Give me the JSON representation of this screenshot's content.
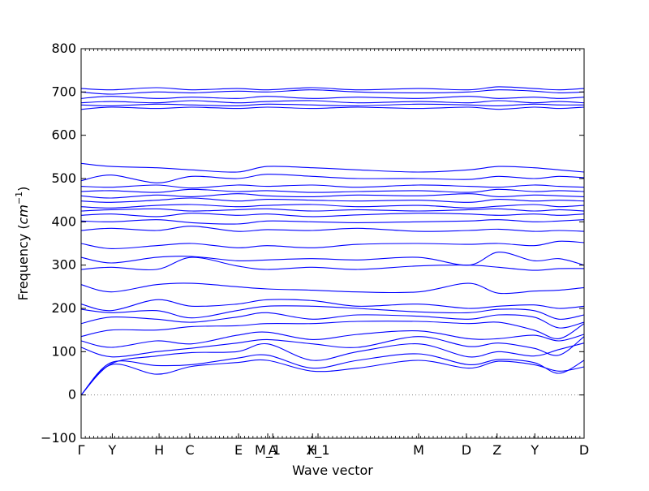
{
  "chart_data": {
    "type": "line",
    "title": "",
    "xlabel": "Wave vector",
    "ylabel": "Frequency ($cm^{-1}$)",
    "ylabel_parts": {
      "main": "Frequency (",
      "math": "cm",
      "sup": "−1",
      "close": ")"
    },
    "ylim": [
      -100,
      800
    ],
    "yticks": [
      -100,
      0,
      100,
      200,
      300,
      400,
      500,
      600,
      700,
      800
    ],
    "x_range": [
      0,
      1
    ],
    "grid": false,
    "legend": "none",
    "zero_line": {
      "y": 0,
      "style": "dotted",
      "color": "#808080"
    },
    "colors": {
      "bands": "#0000ff",
      "axes": "#000000"
    },
    "high_symmetry_points": [
      {
        "label": "Γ",
        "x": 0.0
      },
      {
        "label": "Y",
        "x": 0.062
      },
      {
        "label": "H",
        "x": 0.155
      },
      {
        "label": "C",
        "x": 0.216
      },
      {
        "label": "E",
        "x": 0.313
      },
      {
        "label": "M_1",
        "x": 0.371
      },
      {
        "label": "A",
        "x": 0.381
      },
      {
        "label": "H",
        "x": 0.46
      },
      {
        "label": "X_1",
        "x": 0.471
      },
      {
        "label": "M",
        "x": 0.671
      },
      {
        "label": "D",
        "x": 0.766
      },
      {
        "label": "Z",
        "x": 0.827
      },
      {
        "label": "Y",
        "x": 0.902
      },
      {
        "label": "D",
        "x": 1.0
      }
    ],
    "series": [
      {
        "name": "",
        "x": [
          0,
          0.06,
          0.15,
          0.22,
          0.31,
          0.37,
          0.46,
          0.55,
          0.67,
          0.77,
          0.83,
          0.9,
          0.95,
          1
        ],
        "values": [
          0,
          70,
          48,
          66,
          75,
          80,
          55,
          62,
          80,
          62,
          78,
          70,
          55,
          65
        ]
      },
      {
        "name": "",
        "x": [
          0,
          0.06,
          0.15,
          0.22,
          0.31,
          0.37,
          0.46,
          0.55,
          0.67,
          0.77,
          0.83,
          0.9,
          0.95,
          1
        ],
        "values": [
          0,
          75,
          68,
          70,
          85,
          92,
          62,
          80,
          95,
          70,
          82,
          75,
          50,
          80
        ]
      },
      {
        "name": "",
        "x": [
          0,
          0.06,
          0.15,
          0.22,
          0.31,
          0.37,
          0.46,
          0.55,
          0.67,
          0.77,
          0.83,
          0.9,
          0.95,
          1
        ],
        "values": [
          0,
          72,
          90,
          98,
          100,
          118,
          80,
          100,
          118,
          88,
          100,
          90,
          105,
          120
        ]
      },
      {
        "name": "",
        "x": [
          0,
          0.06,
          0.15,
          0.22,
          0.31,
          0.37,
          0.46,
          0.55,
          0.67,
          0.77,
          0.83,
          0.9,
          0.95,
          1
        ],
        "values": [
          110,
          88,
          100,
          108,
          120,
          128,
          118,
          110,
          135,
          112,
          120,
          108,
          92,
          135
        ]
      },
      {
        "name": "",
        "x": [
          0,
          0.06,
          0.15,
          0.22,
          0.31,
          0.37,
          0.46,
          0.55,
          0.67,
          0.77,
          0.83,
          0.9,
          0.95,
          1
        ],
        "values": [
          125,
          110,
          125,
          118,
          138,
          145,
          128,
          140,
          148,
          130,
          130,
          138,
          125,
          140
        ]
      },
      {
        "name": "",
        "x": [
          0,
          0.06,
          0.15,
          0.22,
          0.31,
          0.37,
          0.46,
          0.55,
          0.67,
          0.77,
          0.83,
          0.9,
          0.95,
          1
        ],
        "values": [
          135,
          150,
          150,
          158,
          160,
          165,
          165,
          170,
          170,
          165,
          168,
          150,
          130,
          165
        ]
      },
      {
        "name": "",
        "x": [
          0,
          0.06,
          0.15,
          0.22,
          0.31,
          0.37,
          0.46,
          0.55,
          0.67,
          0.77,
          0.83,
          0.9,
          0.95,
          1
        ],
        "values": [
          165,
          180,
          175,
          168,
          180,
          190,
          175,
          185,
          182,
          175,
          185,
          180,
          155,
          168
        ]
      },
      {
        "name": "",
        "x": [
          0,
          0.06,
          0.15,
          0.22,
          0.31,
          0.37,
          0.46,
          0.55,
          0.67,
          0.77,
          0.83,
          0.9,
          0.95,
          1
        ],
        "values": [
          198,
          190,
          195,
          178,
          195,
          205,
          205,
          200,
          192,
          190,
          198,
          195,
          175,
          185
        ]
      },
      {
        "name": "",
        "x": [
          0,
          0.06,
          0.15,
          0.22,
          0.31,
          0.37,
          0.46,
          0.55,
          0.67,
          0.77,
          0.83,
          0.9,
          0.95,
          1
        ],
        "values": [
          210,
          195,
          220,
          205,
          210,
          220,
          218,
          205,
          210,
          200,
          205,
          208,
          200,
          205
        ]
      },
      {
        "name": "",
        "x": [
          0,
          0.06,
          0.15,
          0.22,
          0.31,
          0.37,
          0.46,
          0.55,
          0.67,
          0.77,
          0.83,
          0.9,
          0.95,
          1
        ],
        "values": [
          255,
          238,
          255,
          258,
          250,
          245,
          242,
          238,
          238,
          258,
          235,
          240,
          242,
          248
        ]
      },
      {
        "name": "",
        "x": [
          0,
          0.06,
          0.15,
          0.22,
          0.31,
          0.37,
          0.46,
          0.55,
          0.67,
          0.77,
          0.83,
          0.9,
          0.95,
          1
        ],
        "values": [
          290,
          295,
          290,
          318,
          298,
          290,
          295,
          290,
          298,
          300,
          295,
          288,
          292,
          292
        ]
      },
      {
        "name": "",
        "x": [
          0,
          0.06,
          0.15,
          0.22,
          0.31,
          0.37,
          0.46,
          0.55,
          0.67,
          0.77,
          0.83,
          0.9,
          0.95,
          1
        ],
        "values": [
          318,
          305,
          318,
          320,
          310,
          312,
          315,
          312,
          318,
          300,
          330,
          310,
          315,
          300
        ]
      },
      {
        "name": "",
        "x": [
          0,
          0.06,
          0.15,
          0.22,
          0.31,
          0.37,
          0.46,
          0.55,
          0.67,
          0.77,
          0.83,
          0.9,
          0.95,
          1
        ],
        "values": [
          350,
          338,
          345,
          350,
          340,
          345,
          340,
          348,
          350,
          348,
          350,
          345,
          355,
          352
        ]
      },
      {
        "name": "",
        "x": [
          0,
          0.06,
          0.15,
          0.22,
          0.31,
          0.37,
          0.46,
          0.55,
          0.67,
          0.77,
          0.83,
          0.9,
          0.95,
          1
        ],
        "values": [
          380,
          385,
          380,
          390,
          378,
          382,
          380,
          385,
          378,
          380,
          383,
          378,
          380,
          378
        ]
      },
      {
        "name": "",
        "x": [
          0,
          0.06,
          0.15,
          0.22,
          0.31,
          0.37,
          0.46,
          0.55,
          0.67,
          0.77,
          0.83,
          0.9,
          0.95,
          1
        ],
        "values": [
          402,
          400,
          405,
          398,
          395,
          402,
          400,
          398,
          400,
          402,
          405,
          400,
          402,
          405
        ]
      },
      {
        "name": "",
        "x": [
          0,
          0.06,
          0.15,
          0.22,
          0.31,
          0.37,
          0.46,
          0.55,
          0.67,
          0.77,
          0.83,
          0.9,
          0.95,
          1
        ],
        "values": [
          415,
          418,
          412,
          420,
          415,
          418,
          412,
          416,
          420,
          418,
          415,
          418,
          415,
          418
        ]
      },
      {
        "name": "",
        "x": [
          0,
          0.06,
          0.15,
          0.22,
          0.31,
          0.37,
          0.46,
          0.55,
          0.67,
          0.77,
          0.83,
          0.9,
          0.95,
          1
        ],
        "values": [
          425,
          428,
          430,
          425,
          428,
          430,
          425,
          428,
          425,
          428,
          430,
          425,
          428,
          425
        ]
      },
      {
        "name": "",
        "x": [
          0,
          0.06,
          0.15,
          0.22,
          0.31,
          0.37,
          0.46,
          0.55,
          0.67,
          0.77,
          0.83,
          0.9,
          0.95,
          1
        ],
        "values": [
          435,
          432,
          438,
          440,
          435,
          438,
          440,
          435,
          438,
          432,
          436,
          440,
          435,
          438
        ]
      },
      {
        "name": "",
        "x": [
          0,
          0.06,
          0.15,
          0.22,
          0.31,
          0.37,
          0.46,
          0.55,
          0.67,
          0.77,
          0.83,
          0.9,
          0.95,
          1
        ],
        "values": [
          448,
          445,
          450,
          455,
          448,
          452,
          450,
          448,
          450,
          445,
          452,
          448,
          450,
          448
        ]
      },
      {
        "name": "",
        "x": [
          0,
          0.06,
          0.15,
          0.22,
          0.31,
          0.37,
          0.46,
          0.55,
          0.67,
          0.77,
          0.83,
          0.9,
          0.95,
          1
        ],
        "values": [
          460,
          455,
          462,
          458,
          465,
          460,
          458,
          462,
          460,
          465,
          458,
          462,
          460,
          458
        ]
      },
      {
        "name": "",
        "x": [
          0,
          0.06,
          0.15,
          0.22,
          0.31,
          0.37,
          0.46,
          0.55,
          0.67,
          0.77,
          0.83,
          0.9,
          0.95,
          1
        ],
        "values": [
          470,
          472,
          468,
          475,
          470,
          472,
          468,
          470,
          472,
          468,
          475,
          470,
          472,
          470
        ]
      },
      {
        "name": "",
        "x": [
          0,
          0.06,
          0.15,
          0.22,
          0.31,
          0.37,
          0.46,
          0.55,
          0.67,
          0.77,
          0.83,
          0.9,
          0.95,
          1
        ],
        "values": [
          482,
          480,
          485,
          478,
          485,
          482,
          485,
          480,
          485,
          482,
          480,
          485,
          482,
          480
        ]
      },
      {
        "name": "",
        "x": [
          0,
          0.06,
          0.15,
          0.22,
          0.31,
          0.37,
          0.46,
          0.55,
          0.67,
          0.77,
          0.83,
          0.9,
          0.95,
          1
        ],
        "values": [
          495,
          508,
          490,
          505,
          500,
          510,
          505,
          500,
          500,
          498,
          505,
          500,
          505,
          502
        ]
      },
      {
        "name": "",
        "x": [
          0,
          0.06,
          0.15,
          0.22,
          0.31,
          0.37,
          0.46,
          0.55,
          0.67,
          0.77,
          0.83,
          0.9,
          0.95,
          1
        ],
        "values": [
          535,
          528,
          525,
          520,
          515,
          528,
          525,
          520,
          515,
          520,
          528,
          525,
          520,
          515
        ]
      },
      {
        "name": "",
        "x": [
          0,
          0.06,
          0.15,
          0.22,
          0.31,
          0.37,
          0.46,
          0.55,
          0.67,
          0.77,
          0.83,
          0.9,
          0.95,
          1
        ],
        "values": [
          660,
          665,
          662,
          665,
          662,
          665,
          662,
          665,
          662,
          665,
          660,
          665,
          662,
          665
        ]
      },
      {
        "name": "",
        "x": [
          0,
          0.06,
          0.15,
          0.22,
          0.31,
          0.37,
          0.46,
          0.55,
          0.67,
          0.77,
          0.83,
          0.9,
          0.95,
          1
        ],
        "values": [
          670,
          668,
          672,
          670,
          668,
          672,
          670,
          668,
          672,
          670,
          668,
          672,
          670,
          670
        ]
      },
      {
        "name": "",
        "x": [
          0,
          0.06,
          0.15,
          0.22,
          0.31,
          0.37,
          0.46,
          0.55,
          0.67,
          0.77,
          0.83,
          0.9,
          0.95,
          1
        ],
        "values": [
          675,
          678,
          675,
          680,
          675,
          678,
          680,
          675,
          678,
          675,
          680,
          675,
          678,
          675
        ]
      },
      {
        "name": "",
        "x": [
          0,
          0.06,
          0.15,
          0.22,
          0.31,
          0.37,
          0.46,
          0.55,
          0.67,
          0.77,
          0.83,
          0.9,
          0.95,
          1
        ],
        "values": [
          685,
          690,
          685,
          688,
          685,
          690,
          685,
          688,
          685,
          690,
          685,
          688,
          685,
          688
        ]
      },
      {
        "name": "",
        "x": [
          0,
          0.06,
          0.15,
          0.22,
          0.31,
          0.37,
          0.46,
          0.55,
          0.67,
          0.77,
          0.83,
          0.9,
          0.95,
          1
        ],
        "values": [
          700,
          695,
          700,
          698,
          702,
          700,
          705,
          700,
          698,
          700,
          705,
          702,
          698,
          700
        ]
      },
      {
        "name": "",
        "x": [
          0,
          0.06,
          0.15,
          0.22,
          0.31,
          0.37,
          0.46,
          0.55,
          0.67,
          0.77,
          0.83,
          0.9,
          0.95,
          1
        ],
        "values": [
          708,
          705,
          710,
          705,
          708,
          705,
          710,
          705,
          708,
          705,
          712,
          708,
          705,
          708
        ]
      }
    ]
  }
}
